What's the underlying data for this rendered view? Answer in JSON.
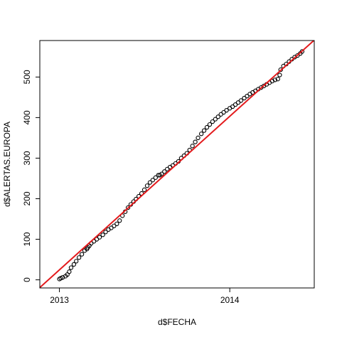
{
  "chart_data": {
    "type": "scatter",
    "title": "",
    "xlabel": "d$FECHA",
    "ylabel": "d$ALERTAS.EUROPA",
    "x_ticks": [
      {
        "value": "2013-01-01",
        "label": "2013"
      },
      {
        "value": "2014-01-01",
        "label": "2014"
      }
    ],
    "y_ticks": [
      0,
      100,
      200,
      300,
      400,
      500
    ],
    "xlim": [
      "2012-11-20",
      "2014-07-01"
    ],
    "ylim": [
      -20,
      590
    ],
    "grid": false,
    "legend": "none",
    "point_color": "#000000",
    "line_color": "#e31a1c",
    "series": [
      {
        "type": "scatter",
        "marker": "open-circle",
        "x": [
          "2013-01-01",
          "2013-01-04",
          "2013-01-08",
          "2013-01-14",
          "2013-01-18",
          "2013-01-22",
          "2013-01-26",
          "2013-02-01",
          "2013-02-06",
          "2013-02-12",
          "2013-02-18",
          "2013-02-24",
          "2013-03-01",
          "2013-03-03",
          "2013-03-06",
          "2013-03-10",
          "2013-03-16",
          "2013-03-22",
          "2013-03-28",
          "2013-04-04",
          "2013-04-10",
          "2013-04-16",
          "2013-04-22",
          "2013-04-28",
          "2013-05-04",
          "2013-05-10",
          "2013-05-16",
          "2013-05-22",
          "2013-05-28",
          "2013-06-03",
          "2013-06-09",
          "2013-06-14",
          "2013-06-20",
          "2013-06-26",
          "2013-07-02",
          "2013-07-08",
          "2013-07-14",
          "2013-07-20",
          "2013-07-26",
          "2013-08-01",
          "2013-08-04",
          "2013-08-08",
          "2013-08-14",
          "2013-08-20",
          "2013-08-26",
          "2013-09-01",
          "2013-09-07",
          "2013-09-13",
          "2013-09-19",
          "2013-09-25",
          "2013-10-01",
          "2013-10-07",
          "2013-10-13",
          "2013-10-19",
          "2013-10-25",
          "2013-11-01",
          "2013-11-07",
          "2013-11-13",
          "2013-11-19",
          "2013-11-25",
          "2013-12-01",
          "2013-12-07",
          "2013-12-13",
          "2013-12-19",
          "2013-12-25",
          "2014-01-01",
          "2014-01-07",
          "2014-01-13",
          "2014-01-19",
          "2014-01-25",
          "2014-02-01",
          "2014-02-07",
          "2014-02-13",
          "2014-02-19",
          "2014-02-25",
          "2014-03-03",
          "2014-03-09",
          "2014-03-15",
          "2014-03-21",
          "2014-03-27",
          "2014-04-02",
          "2014-04-08",
          "2014-04-14",
          "2014-04-18",
          "2014-04-20",
          "2014-04-26",
          "2014-05-02",
          "2014-05-08",
          "2014-05-14",
          "2014-05-20",
          "2014-05-26",
          "2014-06-01",
          "2014-06-05"
        ],
        "y": [
          2,
          4,
          6,
          9,
          13,
          20,
          30,
          38,
          46,
          55,
          63,
          72,
          76,
          80,
          84,
          90,
          95,
          100,
          105,
          111,
          118,
          124,
          128,
          133,
          138,
          146,
          158,
          168,
          178,
          186,
          193,
          199,
          206,
          213,
          222,
          232,
          240,
          246,
          252,
          258,
          258,
          261,
          267,
          273,
          278,
          282,
          287,
          292,
          300,
          306,
          312,
          320,
          330,
          340,
          350,
          360,
          368,
          376,
          383,
          390,
          396,
          402,
          408,
          413,
          418,
          423,
          427,
          432,
          437,
          442,
          448,
          453,
          458,
          462,
          466,
          470,
          474,
          478,
          482,
          486,
          490,
          493,
          495,
          505,
          518,
          527,
          532,
          538,
          544,
          549,
          553,
          558,
          563
        ]
      },
      {
        "type": "line",
        "name": "",
        "x": [
          "2012-11-20",
          "2014-07-01"
        ],
        "y": [
          -19,
          591
        ]
      }
    ]
  }
}
